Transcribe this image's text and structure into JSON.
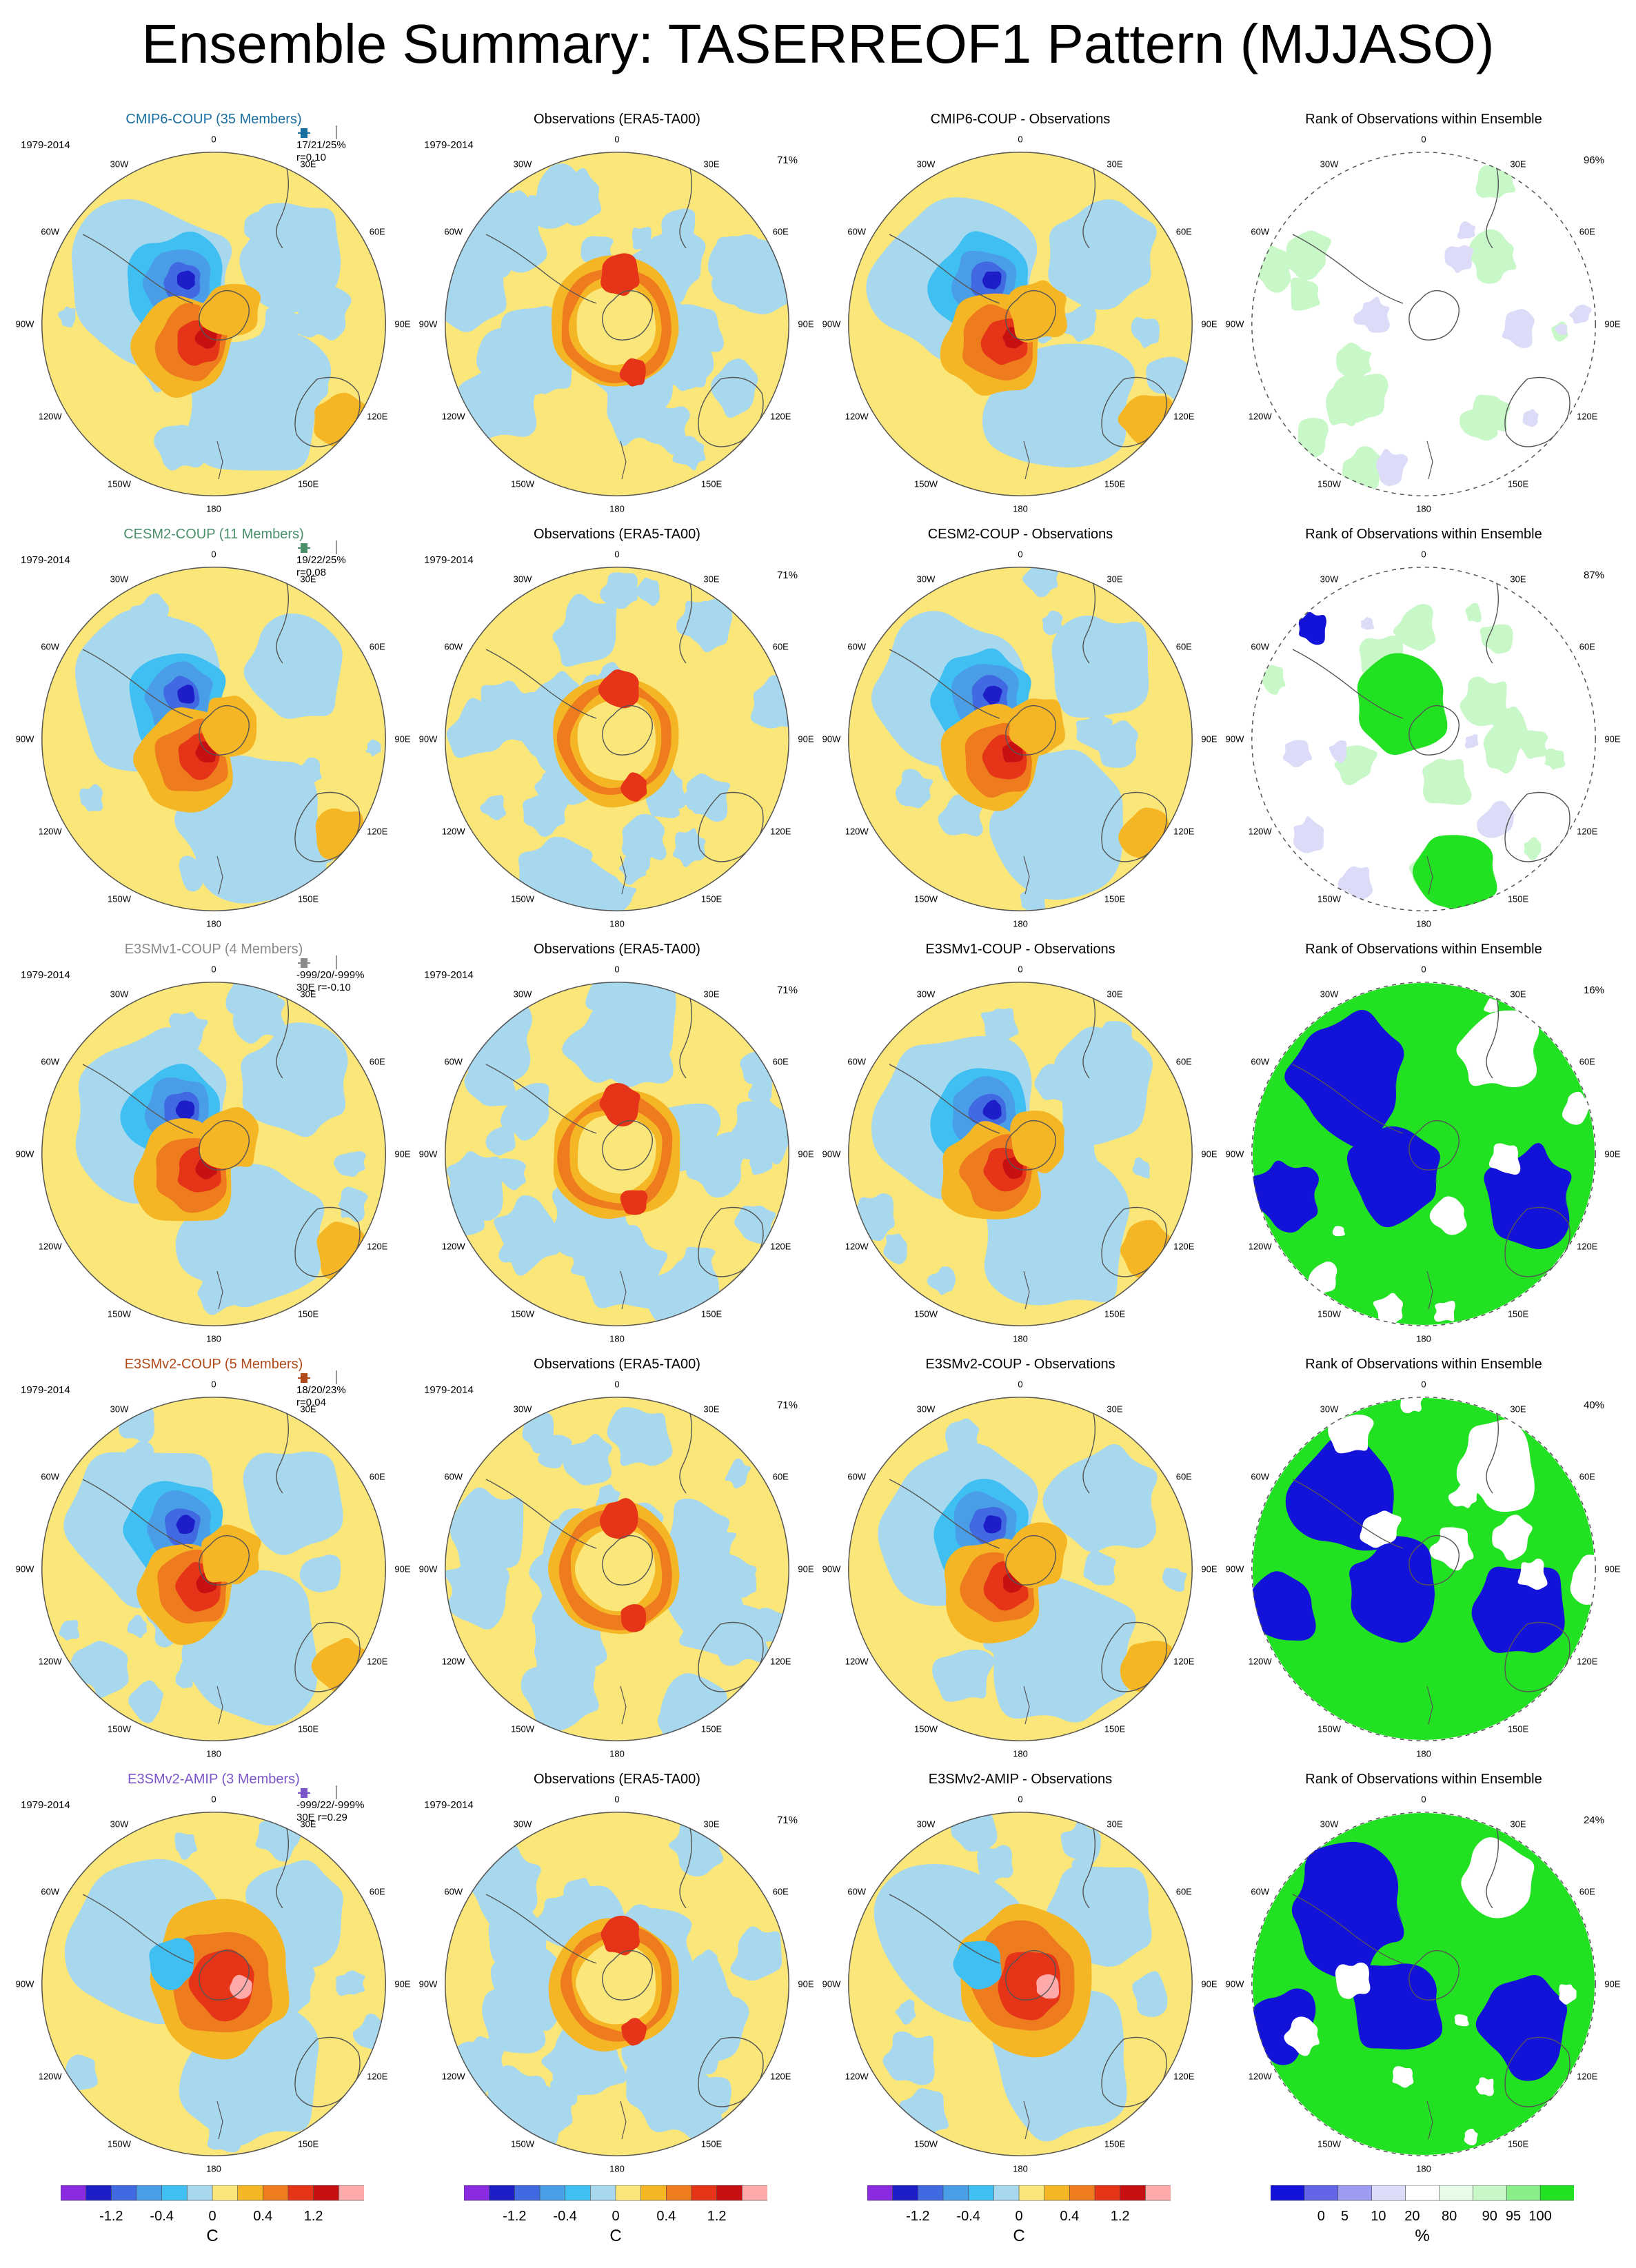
{
  "title": "Ensemble Summary: TASERREOF1 Pattern (MJJASO)",
  "period": "1979-2014",
  "columns": {
    "obs_title": "Observations (ERA5-TA00)",
    "rank_title": "Rank of Observations within Ensemble"
  },
  "rows": [
    {
      "model_title": "CMIP6-COUP (35 Members)",
      "model_color": "#1a6fa0",
      "stats_line1": "17/21/25%",
      "stats_line2": "r=0.10",
      "diff_title": "CMIP6-COUP - Observations",
      "obs_pct": "71%",
      "rank_pct": "96%",
      "map_type": "cmip6"
    },
    {
      "model_title": "CESM2-COUP (11 Members)",
      "model_color": "#4a8f6a",
      "stats_line1": "19/22/25%",
      "stats_line2": "r=0.08",
      "diff_title": "CESM2-COUP - Observations",
      "obs_pct": "71%",
      "rank_pct": "87%",
      "map_type": "cesm2"
    },
    {
      "model_title": "E3SMv1-COUP (4 Members)",
      "model_color": "#8a8a8a",
      "stats_line1": "-999/20/-999%",
      "stats_line2": "30E r=-0.10",
      "diff_title": "E3SMv1-COUP - Observations",
      "obs_pct": "71%",
      "rank_pct": "16%",
      "map_type": "e3smv1"
    },
    {
      "model_title": "E3SMv2-COUP (5 Members)",
      "model_color": "#b04a1a",
      "stats_line1": "18/20/23%",
      "stats_line2": "r=0.04",
      "diff_title": "E3SMv2-COUP - Observations",
      "obs_pct": "71%",
      "rank_pct": "40%",
      "map_type": "e3smv2"
    },
    {
      "model_title": "E3SMv2-AMIP (3 Members)",
      "model_color": "#7a55c8",
      "stats_line1": "-999/22/-999%",
      "stats_line2": "30E r=0.29",
      "diff_title": "E3SMv2-AMIP - Observations",
      "obs_pct": "71%",
      "rank_pct": "24%",
      "map_type": "amip"
    }
  ],
  "lon_labels": [
    "0",
    "30E",
    "60E",
    "90E",
    "120E",
    "150E",
    "180",
    "150W",
    "120W",
    "90W",
    "60W",
    "30W"
  ],
  "colorbar_temp": {
    "colors": [
      "#8a2be2",
      "#1e1ec8",
      "#4169e1",
      "#4a9ee8",
      "#3fbff2",
      "#a8d8ee",
      "#fbe67a",
      "#f5b626",
      "#ef7b1f",
      "#e63419",
      "#c80f12",
      "#ffaaaa"
    ],
    "ticks": [
      "-1.2",
      "-0.4",
      "0",
      "0.4",
      "1.2"
    ],
    "unit": "C"
  },
  "colorbar_rank": {
    "colors": [
      "#1212d8",
      "#6464e6",
      "#9c9cf0",
      "#dcdcf8",
      "#ffffff",
      "#e8fbe8",
      "#c8f7c8",
      "#88ee88",
      "#22e022"
    ],
    "ticks": [
      "0",
      "5",
      "10",
      "20",
      "80",
      "90",
      "95",
      "100"
    ],
    "unit": "%"
  },
  "colors": {
    "land_outline": "#555555",
    "circle_outline": "#555555"
  }
}
